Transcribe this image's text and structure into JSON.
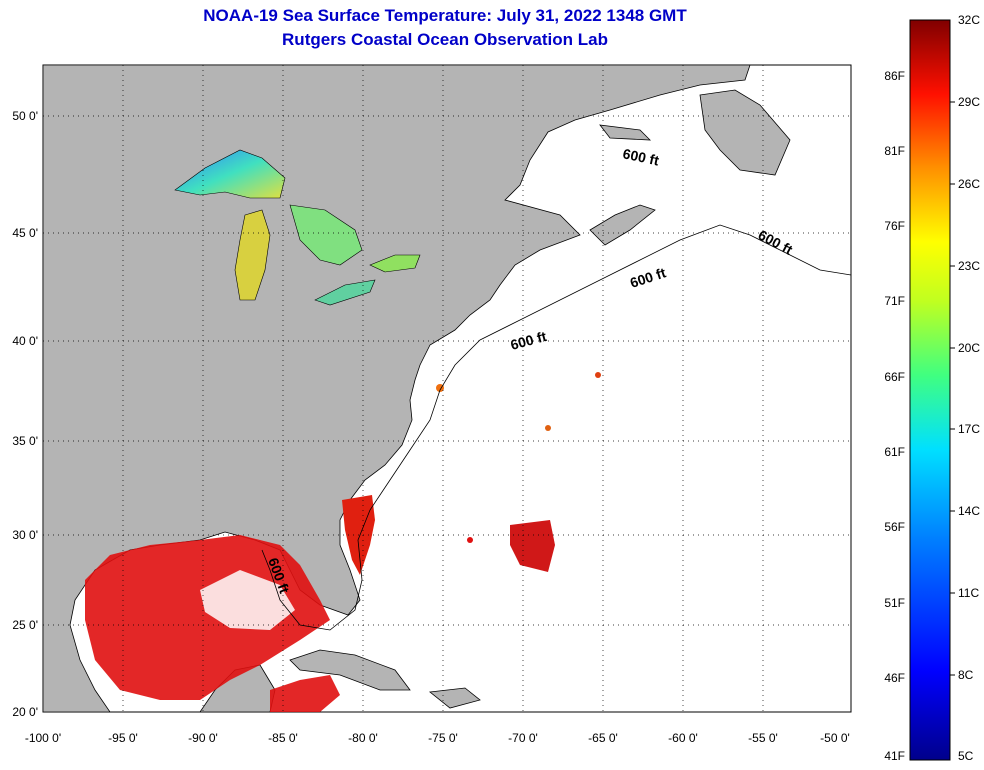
{
  "header": {
    "title": "NOAA-19 Sea Surface Temperature:  July 31, 2022 1348 GMT",
    "subtitle": "Rutgers Coastal Ocean Observation Lab"
  },
  "map": {
    "lon_range": [
      -100,
      -50
    ],
    "lat_range": [
      20,
      52
    ],
    "lon_ticks": [
      "-100 0'",
      "-95 0'",
      "-90 0'",
      "-85 0'",
      "-80 0'",
      "-75 0'",
      "-70 0'",
      "-65 0'",
      "-60 0'",
      "-55 0'",
      "-50 0'"
    ],
    "lat_ticks": [
      "50 0'",
      "45 0'",
      "40 0'",
      "35 0'",
      "30 0'",
      "25 0'",
      "20 0'"
    ],
    "isobath_label": "600 ft",
    "land_color": "#b4b4b4",
    "ocean_color": "#ffffff",
    "grid": "dotted"
  },
  "colorbar": {
    "celsius_labels": [
      "32C",
      "29C",
      "26C",
      "23C",
      "20C",
      "17C",
      "14C",
      "11C",
      "8C",
      "5C"
    ],
    "fahrenheit_labels": [
      "86F",
      "81F",
      "76F",
      "71F",
      "66F",
      "61F",
      "56F",
      "51F",
      "46F",
      "41F"
    ],
    "min_color": "#00008b",
    "max_color": "#800000"
  }
}
